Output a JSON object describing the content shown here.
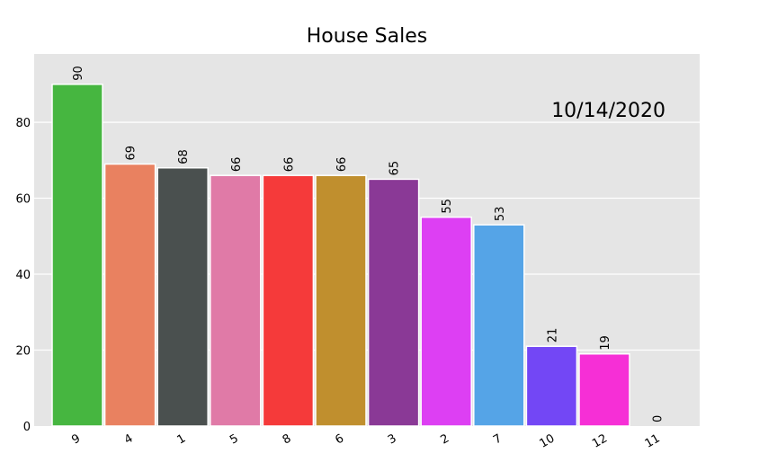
{
  "chart_data": {
    "type": "bar",
    "title": "House Sales",
    "annotation": "10/14/2020",
    "xlabel": "",
    "ylabel": "",
    "categories": [
      "9",
      "4",
      "1",
      "5",
      "8",
      "6",
      "3",
      "2",
      "7",
      "10",
      "12",
      "11"
    ],
    "values": [
      90,
      69,
      68,
      66,
      66,
      66,
      65,
      55,
      53,
      21,
      19,
      0
    ],
    "colors": [
      "#46b640",
      "#e98160",
      "#4a504f",
      "#e07aa7",
      "#f53a3a",
      "#c08f2e",
      "#8a3996",
      "#dd3ff3",
      "#55a4e7",
      "#7347f5",
      "#f62fd6",
      "#9b9b9b"
    ],
    "ylim": [
      0,
      98
    ],
    "yticks": [
      0,
      20,
      40,
      60,
      80
    ],
    "grid": true,
    "legend": "none",
    "background": "#e5e5e5"
  }
}
